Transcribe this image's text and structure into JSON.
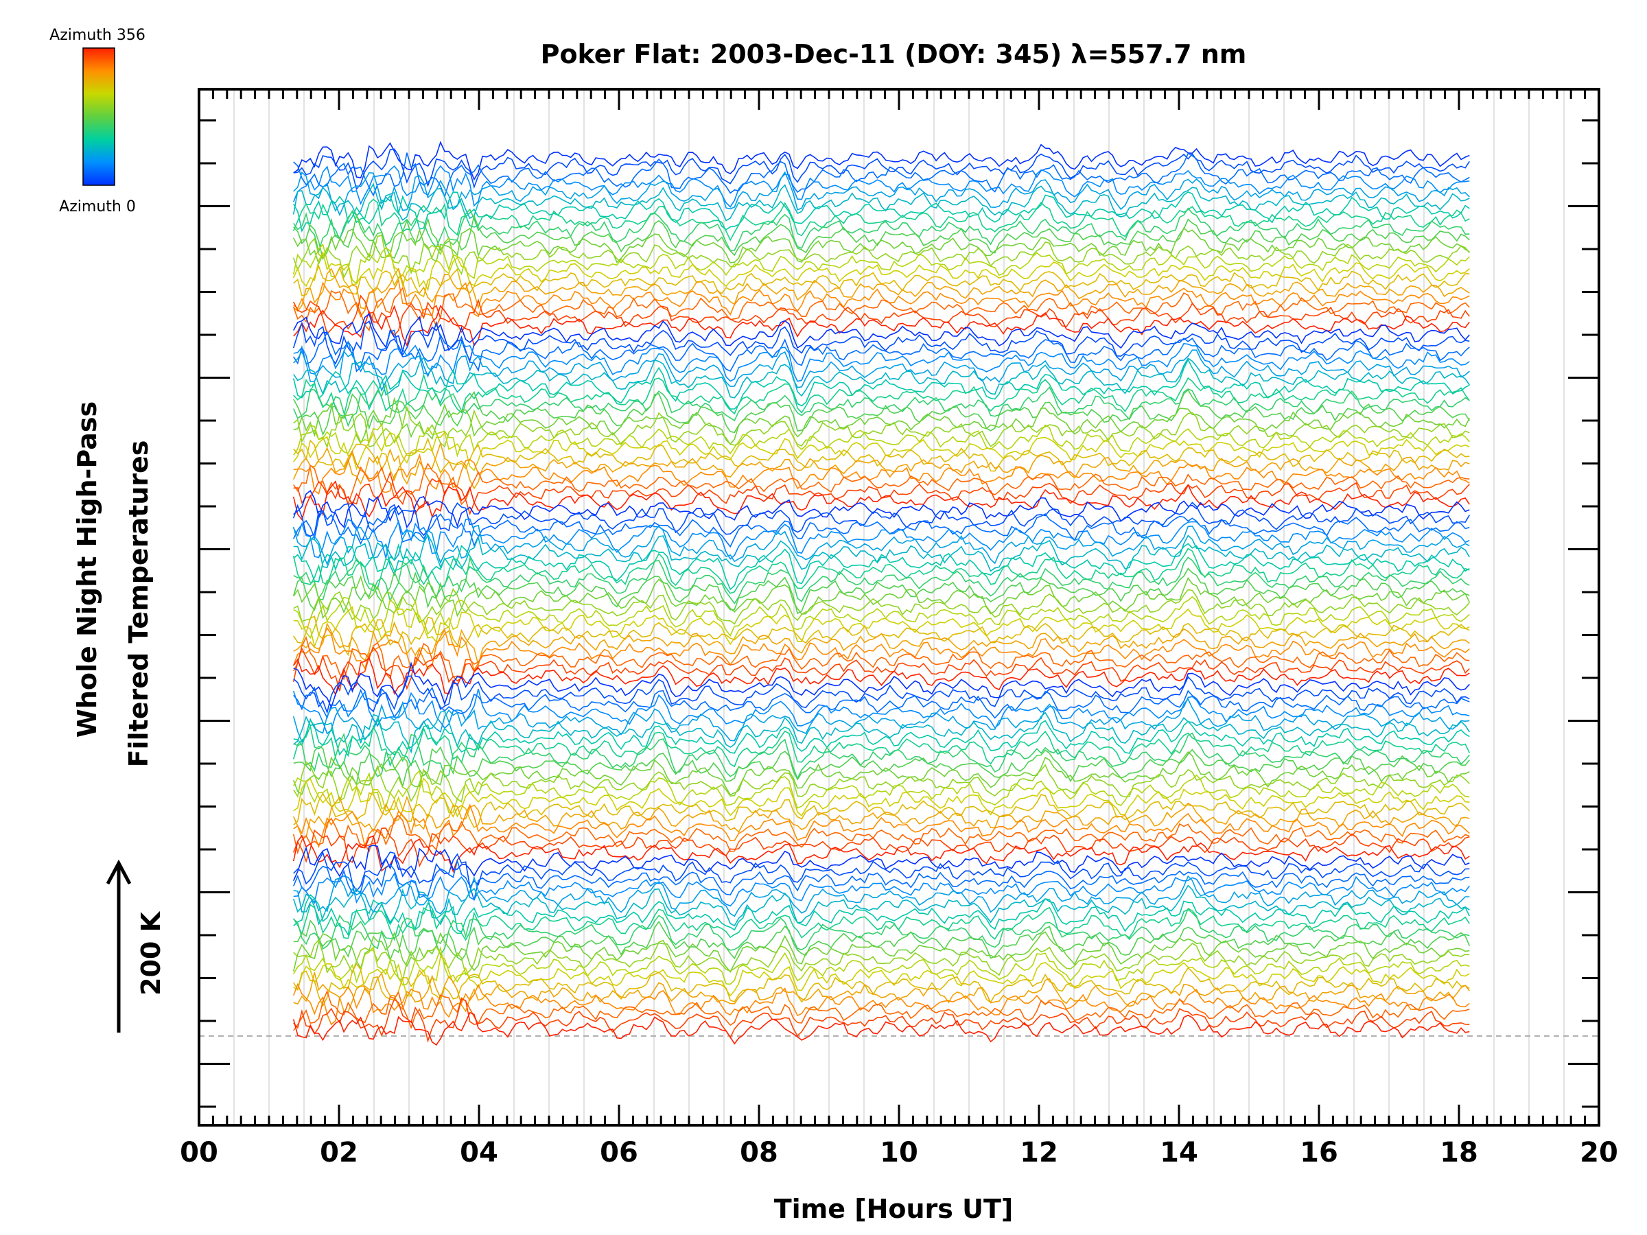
{
  "chart_data": {
    "type": "line",
    "title": "Poker Flat: 2003-Dec-11 (DOY: 345) λ=557.7 nm",
    "xlabel": "Time [Hours UT]",
    "ylabel_line1": "Whole Night High-Pass",
    "ylabel_line2": "Filtered Temperatures",
    "scale_label": "200 K",
    "xlim": [
      0,
      20
    ],
    "x_ticks": [
      "00",
      "02",
      "04",
      "06",
      "08",
      "10",
      "12",
      "14",
      "16",
      "18",
      "20"
    ],
    "x_tick_values": [
      0,
      2,
      4,
      6,
      8,
      10,
      12,
      14,
      16,
      18,
      20
    ],
    "time_range": [
      1.35,
      18.15
    ],
    "y_ticks_labeled": false,
    "grid": "vertical",
    "colorbar": {
      "top_label": "Azimuth 356",
      "bottom_label": "Azimuth 0",
      "range": [
        0,
        356
      ],
      "colors": [
        "#0030ff",
        "#0090ff",
        "#00d0a0",
        "#60d040",
        "#c8d800",
        "#ff9000",
        "#ff2000"
      ]
    },
    "series_groups": 5,
    "series_per_group": 20,
    "common_features": [
      {
        "t": 6.0,
        "k": -14
      },
      {
        "t": 6.6,
        "k": 22
      },
      {
        "t": 6.8,
        "k": -16
      },
      {
        "t": 7.6,
        "k": -28
      },
      {
        "t": 8.4,
        "k": 24
      },
      {
        "t": 8.55,
        "k": -30
      },
      {
        "t": 11.35,
        "k": -18
      },
      {
        "t": 12.1,
        "k": 18
      },
      {
        "t": 12.45,
        "k": -10
      },
      {
        "t": 13.2,
        "k": -14
      },
      {
        "t": 14.15,
        "k": 26
      },
      {
        "t": 15.3,
        "k": -6
      },
      {
        "t": 16.5,
        "k": 8
      }
    ]
  }
}
